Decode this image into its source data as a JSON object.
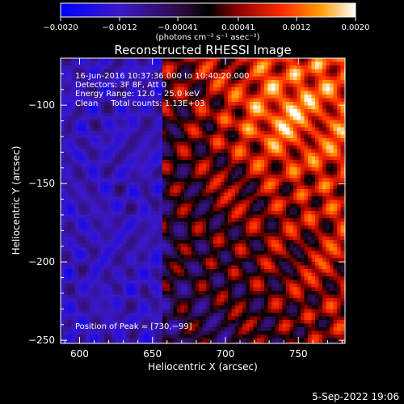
{
  "chart_data": {
    "type": "heatmap",
    "title": "Reconstructed RHESSI Image",
    "xlabel": "Heliocentric X (arcsec)",
    "ylabel": "Heliocentric Y (arcsec)",
    "xlim": [
      587,
      782
    ],
    "ylim": [
      -252,
      -70
    ],
    "x_ticks": [
      600,
      650,
      700,
      750
    ],
    "x_tick_labels": [
      "600",
      "650",
      "700",
      "750"
    ],
    "y_ticks": [
      -100,
      -150,
      -200,
      -250
    ],
    "y_tick_labels": [
      "−100",
      "−150",
      "−200",
      "−250"
    ],
    "colorbar": {
      "range": [
        -0.002,
        0.002
      ],
      "ticks": [
        -0.002,
        -0.0012,
        -0.00041,
        0.00041,
        0.0012,
        0.002
      ],
      "tick_labels": [
        "−0.0020",
        "−0.0012",
        "−0.00041",
        "0.00041",
        "0.0012",
        "0.0020"
      ],
      "unit_label": "(photons cm⁻² s⁻¹ asec⁻²)"
    },
    "peak": {
      "x": 730,
      "y": -99
    },
    "annotations": {
      "time": "16-Jun-2016 10:37:36.000 to 10:40:20.000",
      "detectors": "Detectors: 3F 8F, Att 0",
      "energy": "Energy Range: 12.0 – 25.0 keV",
      "clean": "Clean     Total counts: 1.13E+03",
      "peak_label": "Position of Peak = [730,−99]"
    },
    "footer_date": "5-Sep-2022 19:06"
  }
}
